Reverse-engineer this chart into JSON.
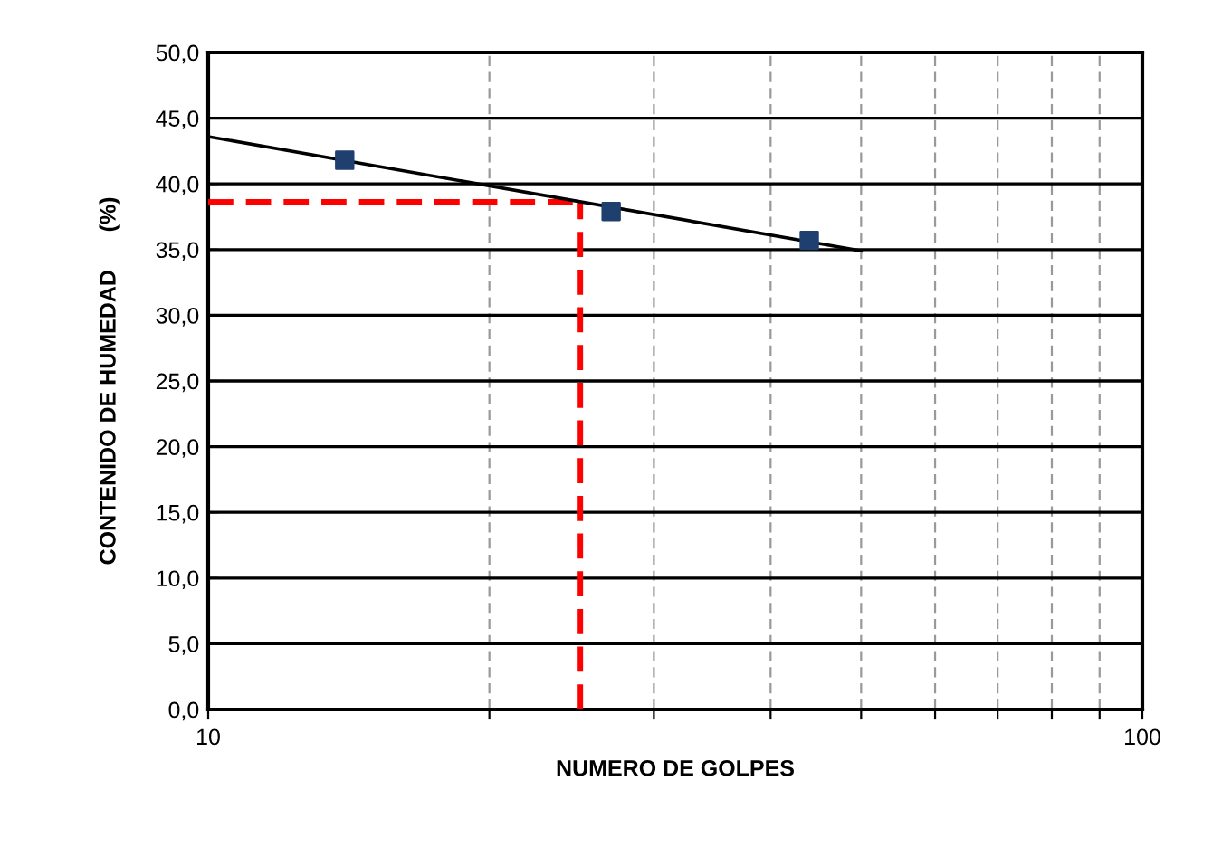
{
  "chart_data": {
    "type": "scatter",
    "xlabel": "NUMERO DE GOLPES",
    "ylabel": "CONTENIDO DE HUMEDAD      (%)",
    "log": "x",
    "xlim": [
      10,
      100
    ],
    "xticks": [
      10,
      {
        "value": 20,
        "label": null
      },
      {
        "value": 30,
        "label": null
      },
      {
        "value": 40,
        "label": null
      },
      {
        "value": 50,
        "label": null
      },
      {
        "value": 60,
        "label": null
      },
      {
        "value": 70,
        "label": null
      },
      {
        "value": 80,
        "label": null
      },
      {
        "value": 90,
        "label": null
      },
      100
    ],
    "ylim": [
      0,
      50
    ],
    "yticks": [
      {
        "value": 0,
        "label": "0,0"
      },
      {
        "value": 5,
        "label": "5,0"
      },
      {
        "value": 10,
        "label": "10,0"
      },
      {
        "value": 15,
        "label": "15,0"
      },
      {
        "value": 20,
        "label": "20,0"
      },
      {
        "value": 25,
        "label": "25,0"
      },
      {
        "value": 30,
        "label": "30,0"
      },
      {
        "value": 35,
        "label": "35,0"
      },
      {
        "value": 40,
        "label": "40,0"
      },
      {
        "value": 45,
        "label": "45,0"
      },
      {
        "value": 50,
        "label": "50,0"
      }
    ],
    "grid": true,
    "marker": "square",
    "series": [
      {
        "color": "#1f3f6e",
        "x": [
          14,
          27,
          44
        ],
        "values": [
          41.8,
          37.9,
          35.7
        ]
      },
      {
        "type": "line",
        "color": "#000000",
        "x": [
          10,
          50
        ],
        "values": [
          43.6,
          34.9
        ],
        "marker": "none"
      }
    ],
    "ref_lines": [
      {
        "axis": "x",
        "value": 25,
        "color": "#ff0000",
        "line_style": "dashed"
      },
      {
        "axis": "y",
        "value": 38.6,
        "color": "#ff0000",
        "line_style": "dashed"
      }
    ]
  }
}
